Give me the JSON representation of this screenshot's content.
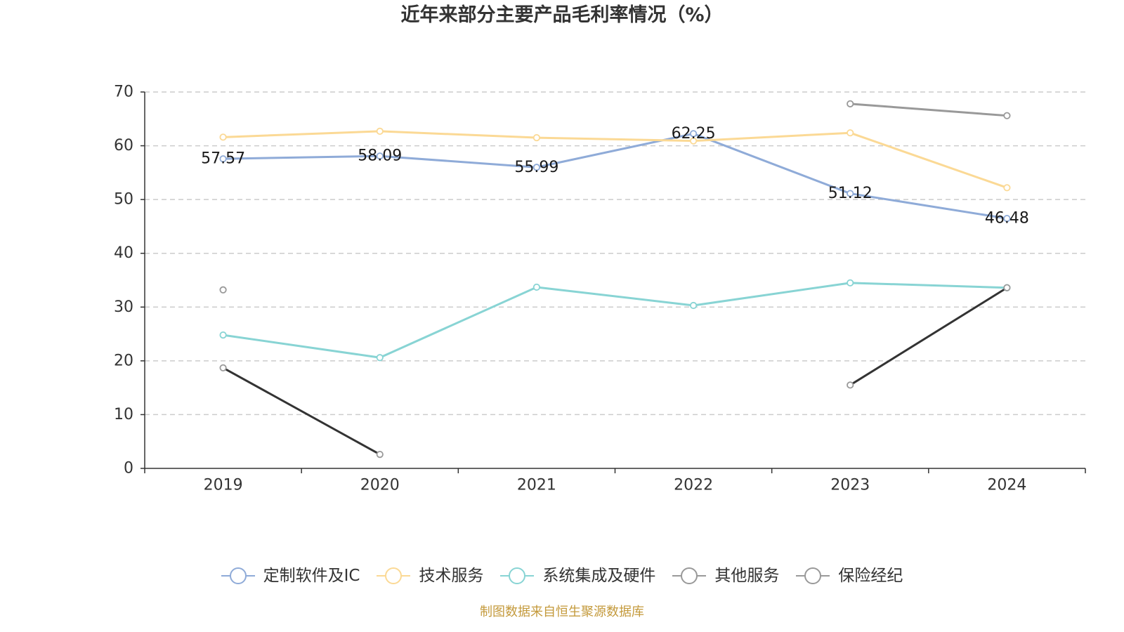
{
  "chart_data": {
    "type": "line",
    "title": "近年来部分主要产品毛利率情况（%）",
    "xlabel": "",
    "ylabel": "",
    "categories": [
      "2019",
      "2020",
      "2021",
      "2022",
      "2023",
      "2024"
    ],
    "ylim": [
      0,
      70
    ],
    "y_tick_labels": [
      "0",
      "10",
      "20",
      "30",
      "40",
      "50",
      "60",
      "70"
    ],
    "grid": true,
    "series": [
      {
        "name": "定制软件及IC",
        "values": [
          57.57,
          58.09,
          55.99,
          62.25,
          51.12,
          46.48
        ],
        "show_labels": true,
        "color": "#8fabd8",
        "line_color": "#8fabd8"
      },
      {
        "name": "技术服务",
        "values": [
          61.6,
          62.7,
          61.5,
          60.9,
          62.4,
          52.2
        ],
        "show_labels": false,
        "color": "#fbd995",
        "line_color": "#fbd995"
      },
      {
        "name": "系统集成及硬件",
        "values": [
          24.8,
          20.6,
          33.7,
          30.3,
          34.5,
          33.6
        ],
        "show_labels": false,
        "color": "#88d4d4",
        "line_color": "#88d4d4"
      },
      {
        "name": "其他服务",
        "values": [
          33.2,
          null,
          null,
          null,
          67.8,
          65.6
        ],
        "show_labels": false,
        "color": "#999999",
        "line_color": "#999999"
      },
      {
        "name": "保险经纪",
        "values": [
          18.7,
          2.6,
          null,
          null,
          15.5,
          33.6
        ],
        "show_labels": false,
        "color": "#999999",
        "line_color": "#333333"
      }
    ]
  },
  "source_note": "制图数据来自恒生聚源数据库",
  "colors": {
    "title": "#333333",
    "axis": "#333333",
    "grid": "#cccccc",
    "source_note": "#c49a3c"
  }
}
